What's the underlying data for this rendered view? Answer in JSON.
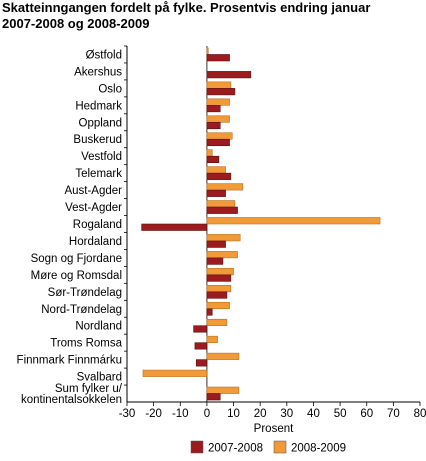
{
  "title_line1": "Skatteinngangen fordelt på fylke. Prosentvis endring januar",
  "title_line2": "2007-2008 og 2008-2009",
  "chart_data": {
    "type": "bar",
    "orientation": "horizontal",
    "xlabel": "Prosent",
    "xlim": [
      -30,
      80
    ],
    "xticks": [
      -30,
      -20,
      -10,
      0,
      10,
      20,
      30,
      40,
      50,
      60,
      70,
      80
    ],
    "grid": false,
    "legend_position": "bottom",
    "categories": [
      "Østfold",
      "Akershus",
      "Oslo",
      "Hedmark",
      "Oppland",
      "Buskerud",
      "Vestfold",
      "Telemark",
      "Aust-Agder",
      "Vest-Agder",
      "Rogaland",
      "Hordaland",
      "Sogn og Fjordane",
      "Møre og Romsdal",
      "Sør-Trøndelag",
      "Nord-Trøndelag",
      "Nordland",
      "Troms Romsa",
      "Finnmark Finnmárku",
      "Svalbard",
      "Sum fylker u/\nkontinentalsokkelen"
    ],
    "series": [
      {
        "name": "2007-2008",
        "color": "#9b1b1f",
        "values": [
          8.5,
          16.5,
          10.5,
          5,
          5,
          8.5,
          4.5,
          9,
          7,
          11.5,
          -24.5,
          7,
          6,
          9,
          7.5,
          2,
          -5,
          -4.5,
          -4,
          0,
          5
        ]
      },
      {
        "name": "2008-2009",
        "color": "#f29a38",
        "values": [
          0.5,
          0,
          9,
          8.5,
          8.5,
          9.5,
          2,
          7,
          13.5,
          10.5,
          65,
          12.5,
          11.5,
          10,
          9,
          8.5,
          7.5,
          4,
          12,
          -24,
          12
        ]
      }
    ]
  }
}
